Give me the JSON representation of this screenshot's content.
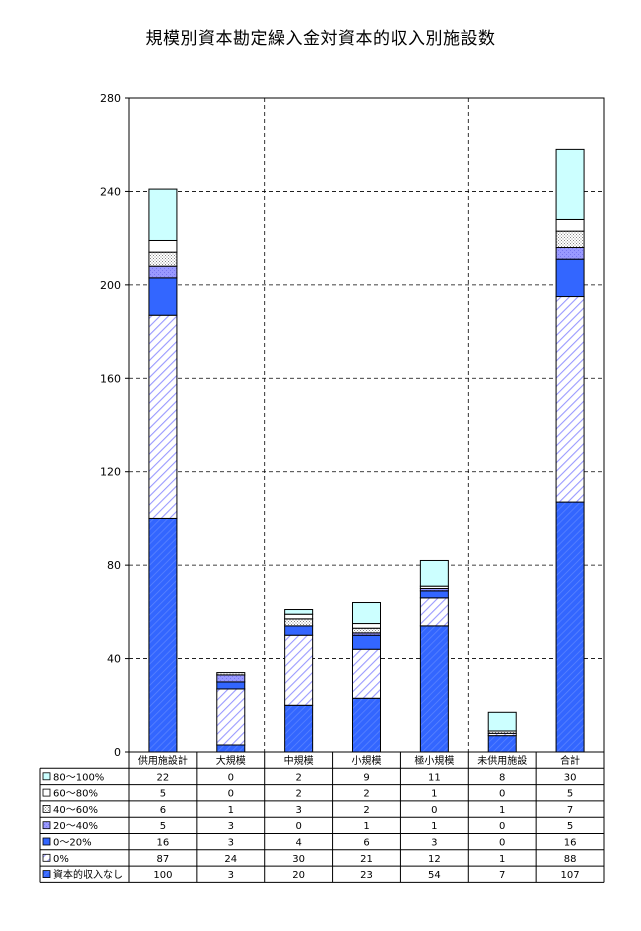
{
  "colors": {
    "gridline": "#000000",
    "cyan": "#ccffff",
    "blue": "#3366ff",
    "lavender": "#9999ff",
    "stripe": "#9999ff",
    "dots": "#aaaaaa"
  },
  "chart_data": {
    "type": "bar",
    "stacked": true,
    "title": "規模別資本勘定繰入金対資本的収入別施設数",
    "xlabel": "",
    "ylabel": "",
    "ylim": [
      0,
      280
    ],
    "yticks": [
      "0",
      "40",
      "80",
      "120",
      "160",
      "200",
      "240",
      "280"
    ],
    "grid": true,
    "legend": "table-below",
    "categories": [
      "供用施設計",
      "大規模",
      "中規模",
      "小規模",
      "極小規模",
      "未供用施設",
      "合計"
    ],
    "series": [
      {
        "name": "資本的収入なし",
        "values": [
          100,
          3,
          20,
          23,
          54,
          7,
          107
        ],
        "values_text": [
          "100",
          "3",
          "20",
          "23",
          "54",
          "7",
          "107"
        ]
      },
      {
        "name": "0%",
        "values": [
          87,
          24,
          30,
          21,
          12,
          1,
          88
        ],
        "values_text": [
          "87",
          "24",
          "30",
          "21",
          "12",
          "1",
          "88"
        ]
      },
      {
        "name": "0～20%",
        "values": [
          16,
          3,
          4,
          6,
          3,
          0,
          16
        ],
        "values_text": [
          "16",
          "3",
          "4",
          "6",
          "3",
          "0",
          "16"
        ]
      },
      {
        "name": "20～40%",
        "values": [
          5,
          3,
          0,
          1,
          1,
          0,
          5
        ],
        "values_text": [
          "5",
          "3",
          "0",
          "1",
          "1",
          "0",
          "5"
        ]
      },
      {
        "name": "40～60%",
        "values": [
          6,
          1,
          3,
          2,
          0,
          1,
          7
        ],
        "values_text": [
          "6",
          "1",
          "3",
          "2",
          "0",
          "1",
          "7"
        ]
      },
      {
        "name": "60～80%",
        "values": [
          5,
          0,
          2,
          2,
          1,
          0,
          5
        ],
        "values_text": [
          "5",
          "0",
          "2",
          "2",
          "1",
          "0",
          "5"
        ]
      },
      {
        "name": "80～100%",
        "values": [
          22,
          0,
          2,
          9,
          11,
          8,
          30
        ],
        "values_text": [
          "22",
          "0",
          "2",
          "9",
          "11",
          "8",
          "30"
        ]
      }
    ]
  }
}
